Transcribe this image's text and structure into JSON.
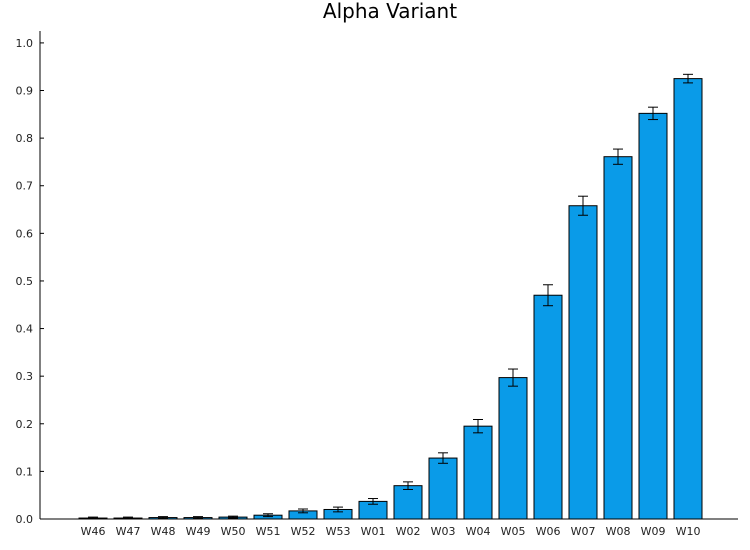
{
  "chart_data": {
    "type": "bar",
    "title": "Alpha Variant",
    "xlabel": "",
    "ylabel": "",
    "categories": [
      "W46",
      "W47",
      "W48",
      "W49",
      "W50",
      "W51",
      "W52",
      "W53",
      "W01",
      "W02",
      "W03",
      "W04",
      "W05",
      "W06",
      "W07",
      "W08",
      "W09",
      "W10"
    ],
    "values": [
      0.002,
      0.002,
      0.003,
      0.003,
      0.004,
      0.008,
      0.017,
      0.02,
      0.037,
      0.07,
      0.128,
      0.195,
      0.297,
      0.47,
      0.658,
      0.761,
      0.852,
      0.925
    ],
    "error": [
      0.002,
      0.002,
      0.002,
      0.002,
      0.002,
      0.003,
      0.004,
      0.005,
      0.006,
      0.008,
      0.011,
      0.014,
      0.018,
      0.022,
      0.02,
      0.016,
      0.013,
      0.009
    ],
    "ylim": [
      0,
      1.025
    ],
    "yticks": [
      "0.0",
      "0.1",
      "0.2",
      "0.3",
      "0.4",
      "0.5",
      "0.6",
      "0.7",
      "0.8",
      "0.9",
      "1.0"
    ],
    "grid": false,
    "legend": "none",
    "bar_color": "#0A9BE8",
    "bar_edge_color": "#000000",
    "errorbar_color": "#000000"
  }
}
